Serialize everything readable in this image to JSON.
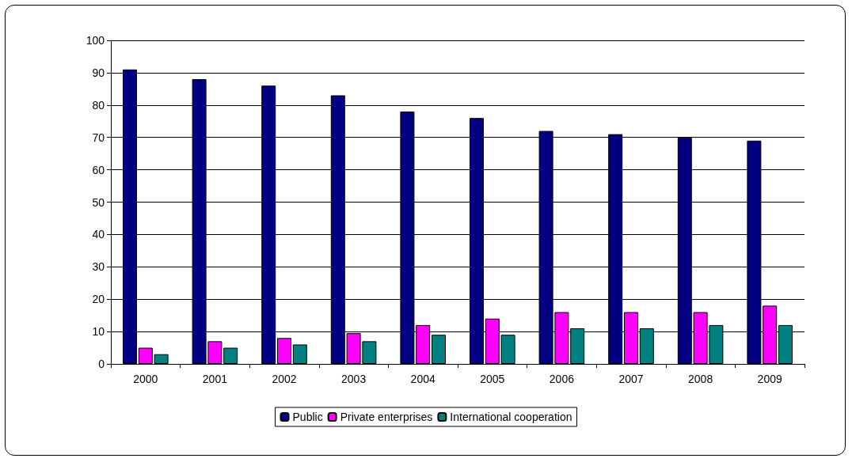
{
  "chart_data": {
    "type": "bar",
    "categories": [
      "2000",
      "2001",
      "2002",
      "2003",
      "2004",
      "2005",
      "2006",
      "2007",
      "2008",
      "2009"
    ],
    "series": [
      {
        "name": "Public",
        "color": "#000080",
        "values": [
          91,
          88,
          86,
          83,
          78,
          76,
          72,
          71,
          70,
          69
        ]
      },
      {
        "name": "Private enterprises",
        "color": "#ff00ff",
        "values": [
          5,
          7,
          8,
          9.5,
          12,
          14,
          16,
          16,
          16,
          18
        ]
      },
      {
        "name": "International cooperation",
        "color": "#008080",
        "values": [
          3,
          5,
          6,
          7,
          9,
          9,
          11,
          11,
          12,
          12
        ]
      }
    ],
    "ylim": [
      0,
      100
    ],
    "yticks": [
      0,
      10,
      20,
      30,
      40,
      50,
      60,
      70,
      80,
      90,
      100
    ],
    "grid": "y",
    "legend": "bottom"
  }
}
